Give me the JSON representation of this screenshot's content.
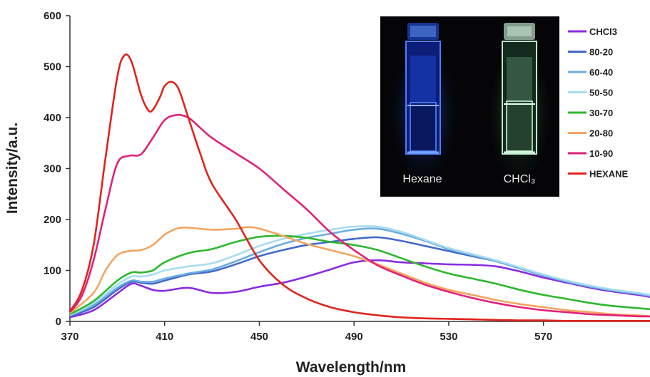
{
  "chart_data": {
    "type": "line",
    "xlabel": "Wavelength/nm",
    "ylabel": "Intensity/a.u.",
    "xlim": [
      370,
      615
    ],
    "ylim": [
      0,
      600
    ],
    "xticks": [
      370,
      410,
      450,
      490,
      530,
      570
    ],
    "yticks": [
      0,
      100,
      200,
      300,
      400,
      500,
      600
    ],
    "legend_position": "right",
    "series": [
      {
        "name": "CHCl3",
        "color": "#8a2be2",
        "x": [
          370,
          380,
          390,
          396,
          400,
          405,
          410,
          420,
          430,
          440,
          450,
          460,
          470,
          480,
          490,
          500,
          510,
          520,
          530,
          540,
          550,
          560,
          570,
          580,
          590,
          600,
          610,
          615
        ],
        "y": [
          8,
          22,
          55,
          74,
          70,
          62,
          60,
          66,
          56,
          58,
          68,
          76,
          88,
          102,
          116,
          120,
          116,
          114,
          112,
          111,
          108,
          98,
          86,
          76,
          66,
          58,
          52,
          48
        ]
      },
      {
        "name": "80-20",
        "color": "#4169c8",
        "x": [
          370,
          380,
          390,
          396,
          400,
          405,
          410,
          420,
          430,
          440,
          450,
          460,
          470,
          480,
          490,
          500,
          510,
          520,
          530,
          540,
          550,
          560,
          570,
          580,
          590,
          600,
          610,
          615
        ],
        "y": [
          10,
          28,
          62,
          78,
          76,
          74,
          80,
          92,
          98,
          112,
          128,
          140,
          150,
          156,
          162,
          165,
          158,
          148,
          138,
          128,
          118,
          104,
          90,
          78,
          68,
          60,
          54,
          50
        ]
      },
      {
        "name": "60-40",
        "color": "#6aaee0",
        "x": [
          370,
          380,
          390,
          396,
          400,
          405,
          410,
          420,
          430,
          440,
          450,
          460,
          470,
          480,
          490,
          500,
          510,
          520,
          530,
          540,
          550,
          560,
          570,
          580,
          590,
          600,
          610,
          615
        ],
        "y": [
          12,
          32,
          66,
          80,
          78,
          78,
          84,
          94,
          102,
          118,
          136,
          152,
          164,
          172,
          180,
          182,
          172,
          158,
          142,
          130,
          118,
          104,
          90,
          78,
          68,
          60,
          54,
          50
        ]
      },
      {
        "name": "50-50",
        "color": "#a8dcef",
        "x": [
          370,
          380,
          390,
          396,
          400,
          405,
          410,
          420,
          430,
          440,
          450,
          460,
          470,
          480,
          490,
          500,
          510,
          520,
          530,
          540,
          550,
          560,
          570,
          580,
          590,
          600,
          610,
          615
        ],
        "y": [
          12,
          36,
          72,
          88,
          88,
          92,
          100,
          108,
          114,
          130,
          148,
          162,
          172,
          180,
          186,
          186,
          176,
          160,
          144,
          132,
          120,
          106,
          92,
          80,
          70,
          62,
          56,
          52
        ]
      },
      {
        "name": "30-70",
        "color": "#2eb82e",
        "x": [
          370,
          380,
          390,
          396,
          400,
          405,
          410,
          420,
          430,
          440,
          450,
          460,
          470,
          480,
          490,
          500,
          510,
          520,
          530,
          540,
          550,
          560,
          570,
          580,
          590,
          600,
          610,
          615
        ],
        "y": [
          14,
          40,
          80,
          96,
          96,
          100,
          116,
          134,
          142,
          156,
          166,
          168,
          164,
          156,
          150,
          140,
          124,
          108,
          94,
          84,
          74,
          62,
          52,
          44,
          36,
          30,
          26,
          24
        ]
      },
      {
        "name": "20-80",
        "color": "#f4a460",
        "x": [
          370,
          380,
          385,
          390,
          395,
          400,
          405,
          410,
          415,
          420,
          430,
          440,
          445,
          450,
          460,
          470,
          480,
          490,
          500,
          510,
          520,
          530,
          540,
          550,
          560,
          570,
          580,
          590,
          600,
          610,
          615
        ],
        "y": [
          16,
          56,
          100,
          130,
          138,
          140,
          150,
          170,
          182,
          184,
          180,
          182,
          185,
          182,
          168,
          152,
          140,
          128,
          112,
          94,
          76,
          62,
          52,
          42,
          34,
          28,
          22,
          18,
          14,
          12,
          10
        ]
      },
      {
        "name": "10-90",
        "color": "#e0217a",
        "x": [
          370,
          375,
          380,
          385,
          390,
          395,
          400,
          405,
          410,
          415,
          420,
          425,
          430,
          440,
          450,
          460,
          470,
          480,
          490,
          500,
          510,
          520,
          530,
          540,
          550,
          560,
          570,
          580,
          590,
          600,
          610,
          615
        ],
        "y": [
          18,
          50,
          120,
          220,
          310,
          325,
          328,
          360,
          395,
          405,
          400,
          380,
          360,
          330,
          300,
          260,
          220,
          175,
          140,
          110,
          90,
          72,
          58,
          46,
          36,
          28,
          22,
          18,
          14,
          12,
          10,
          10
        ]
      },
      {
        "name": "HEXANE",
        "color": "#e0241c",
        "x": [
          370,
          375,
          380,
          385,
          390,
          393,
          396,
          400,
          403,
          405,
          408,
          410,
          413,
          416,
          420,
          425,
          430,
          440,
          450,
          460,
          470,
          480,
          490,
          500,
          510,
          520,
          530,
          540,
          550,
          560,
          570,
          580,
          590,
          600,
          610,
          615
        ],
        "y": [
          20,
          60,
          150,
          320,
          480,
          522,
          510,
          445,
          415,
          415,
          440,
          462,
          470,
          455,
          400,
          330,
          270,
          200,
          120,
          72,
          45,
          28,
          18,
          12,
          8,
          6,
          5,
          4,
          3,
          2,
          2,
          1,
          1,
          1,
          1,
          1
        ]
      }
    ],
    "inset": {
      "labels": [
        "Hexane",
        "CHCl₃"
      ]
    }
  }
}
